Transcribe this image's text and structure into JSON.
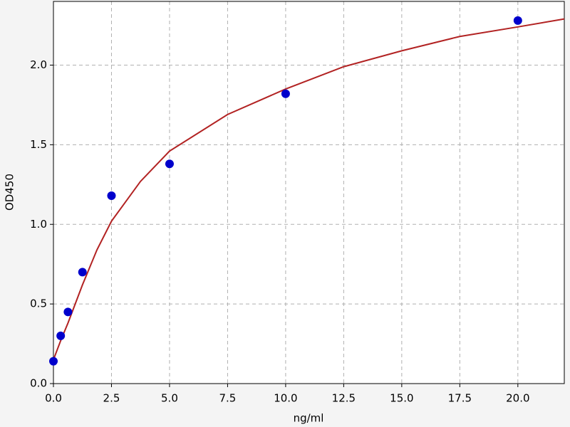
{
  "chart_data": {
    "type": "scatter",
    "xlabel": "ng/ml",
    "ylabel": "OD450",
    "xlim": [
      0,
      22
    ],
    "ylim": [
      0,
      2.4
    ],
    "xticks": [
      {
        "value": 0,
        "label": "0.0"
      },
      2.5,
      {
        "value": 5,
        "label": "5.0"
      },
      7.5,
      {
        "value": 10,
        "label": "10.0"
      },
      12.5,
      {
        "value": 15,
        "label": "15.0"
      },
      17.5,
      {
        "value": 20,
        "label": "20.0"
      }
    ],
    "yticks": [
      {
        "value": 0,
        "label": "0.0"
      },
      0.5,
      {
        "value": 1,
        "label": "1.0"
      },
      1.5,
      {
        "value": 2,
        "label": "2.0"
      }
    ],
    "grid": true,
    "series": [
      {
        "mode": "markers",
        "color": "#0000cc",
        "x": [
          0,
          0.3125,
          0.625,
          1.25,
          2.5,
          5,
          10,
          20
        ],
        "values": [
          0.14,
          0.3,
          0.45,
          0.7,
          1.18,
          1.38,
          1.82,
          2.28
        ]
      },
      {
        "mode": "line",
        "color": "#b22222",
        "x": [
          0,
          0.3125,
          0.625,
          1.25,
          1.875,
          2.5,
          3.75,
          5,
          7.5,
          10,
          12.5,
          15,
          17.5,
          20,
          22
        ],
        "values": [
          0.15,
          0.27,
          0.38,
          0.62,
          0.84,
          1.02,
          1.27,
          1.46,
          1.69,
          1.85,
          1.99,
          2.09,
          2.18,
          2.24,
          2.29
        ]
      }
    ]
  }
}
